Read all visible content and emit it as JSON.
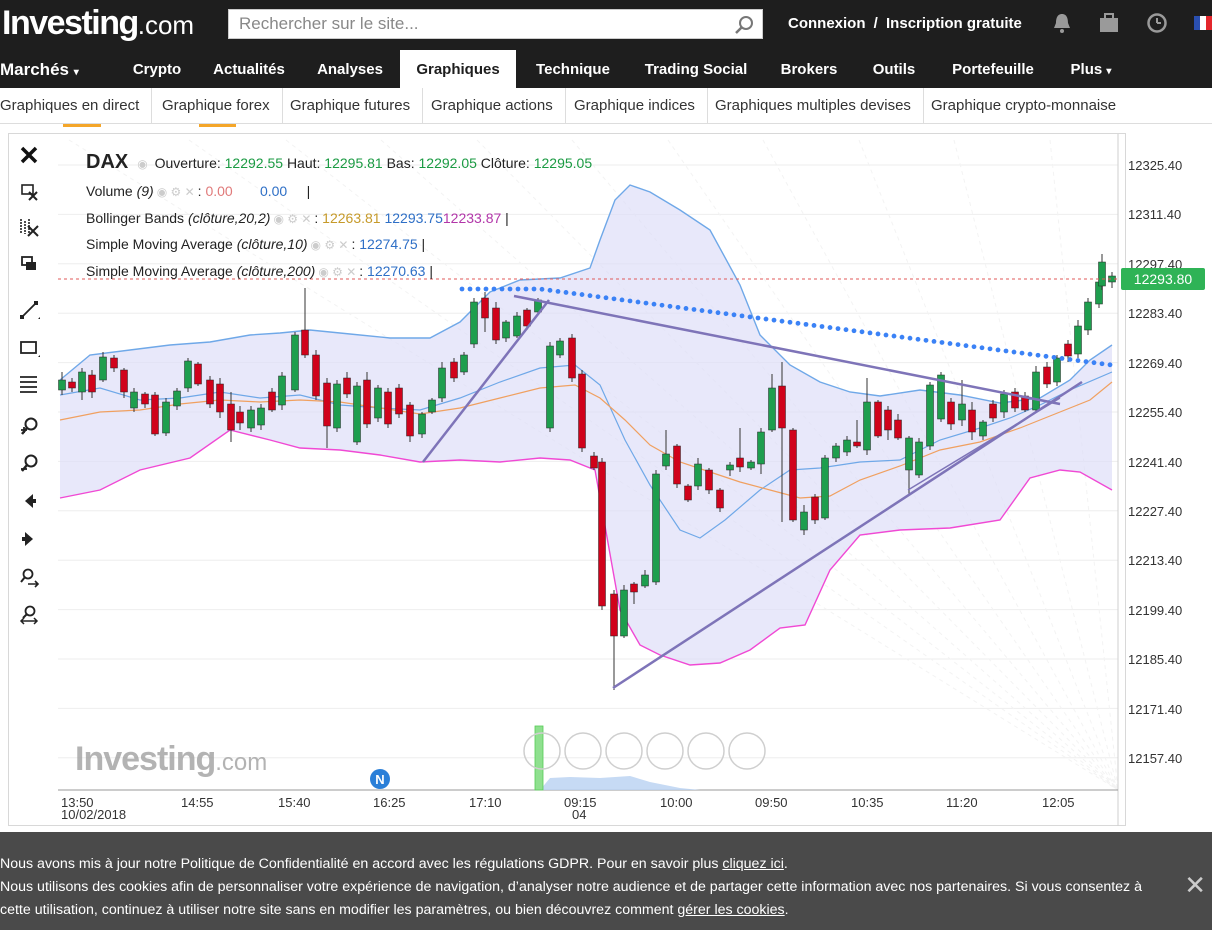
{
  "header": {
    "logo_main": "Investing",
    "logo_suffix": ".com",
    "search_placeholder": "Rechercher sur le site...",
    "login": "Connexion",
    "separator": "/",
    "signup": "Inscription gratuite",
    "icons": [
      "bell-icon",
      "briefcase-icon",
      "clock-icon",
      "flag-france-icon"
    ]
  },
  "nav": {
    "items": [
      "Marchés",
      "Crypto",
      "Actualités",
      "Analyses",
      "Graphiques",
      "Technique",
      "Trading Social",
      "Brokers",
      "Outils",
      "Portefeuille",
      "Plus"
    ],
    "active": "Graphiques"
  },
  "subnav": {
    "items": [
      "Graphiques en direct",
      "Graphique forex",
      "Graphique futures",
      "Graphique actions",
      "Graphique indices",
      "Graphiques multiples devises",
      "Graphique crypto-monnaise"
    ]
  },
  "legend": {
    "symbol": "DAX",
    "open_label": "Ouverture:",
    "open": "12292.55",
    "high_label": "Haut:",
    "high": "12295.81",
    "low_label": "Bas:",
    "low": "12292.05",
    "close_label": "Clôture:",
    "close": "12295.05",
    "volume_label": "Volume",
    "volume_param": "(9)",
    "volume_v1": "0.00",
    "volume_v2": "0.00",
    "bb_label": "Bollinger Bands",
    "bb_param": "(clôture,20,2)",
    "bb_mid": "12263.81",
    "bb_up": "12293.75",
    "bb_low": "12233.87",
    "sma10_label": "Simple Moving Average",
    "sma10_param": "(clôture,10)",
    "sma10": "12274.75",
    "sma200_label": "Simple Moving Average",
    "sma200_param": "(clôture,200)",
    "sma200": "12270.63"
  },
  "chart_data": {
    "type": "candlestick",
    "title": "DAX",
    "current_price": "12293.80",
    "y_ticks": [
      "12325.40",
      "12311.40",
      "12297.40",
      "12283.40",
      "12269.40",
      "12255.40",
      "12241.40",
      "12227.40",
      "12213.40",
      "12199.40",
      "12185.40",
      "12171.40",
      "12157.40"
    ],
    "x_ticks": [
      {
        "time": "13:50",
        "date": "10/02/2018"
      },
      {
        "time": "14:55",
        "date": ""
      },
      {
        "time": "15:40",
        "date": ""
      },
      {
        "time": "16:25",
        "date": ""
      },
      {
        "time": "17:10",
        "date": ""
      },
      {
        "time": "09:15",
        "date": "04"
      },
      {
        "time": "10:00",
        "date": ""
      },
      {
        "time": "09:50",
        "date": ""
      },
      {
        "time": "10:35",
        "date": ""
      },
      {
        "time": "11:20",
        "date": ""
      },
      {
        "time": "12:05",
        "date": ""
      }
    ],
    "ylim": [
      12150,
      12332
    ],
    "colors": {
      "up": "#1e9e4e",
      "down": "#d0021b",
      "bb": "#6fa8e8",
      "bb_lower": "#f049d4",
      "sma": "#f0a060",
      "trend": "#7e74b8",
      "dotted": "#3b82f6"
    },
    "news_marker": "N"
  },
  "watermark": {
    "main": "Investing",
    "suffix": ".com"
  },
  "cookie": {
    "line1": "Nous avons mis à jour notre Politique de Confidentialité en accord avec les régulations GDPR. Pour en savoir plus ",
    "link1": "cliquez ici",
    "line1_end": ".",
    "line2": "Nous utilisons des cookies afin de personnaliser votre expérience de navigation, d’analyser notre audience et de partager cette information avec nos partenaires. Si vous consentez à",
    "line3": "cette utilisation, continuez à utiliser notre site sans en modifier les paramètres, ou bien découvrez comment ",
    "link2": "gérer les cookies",
    "line3_end": "."
  }
}
